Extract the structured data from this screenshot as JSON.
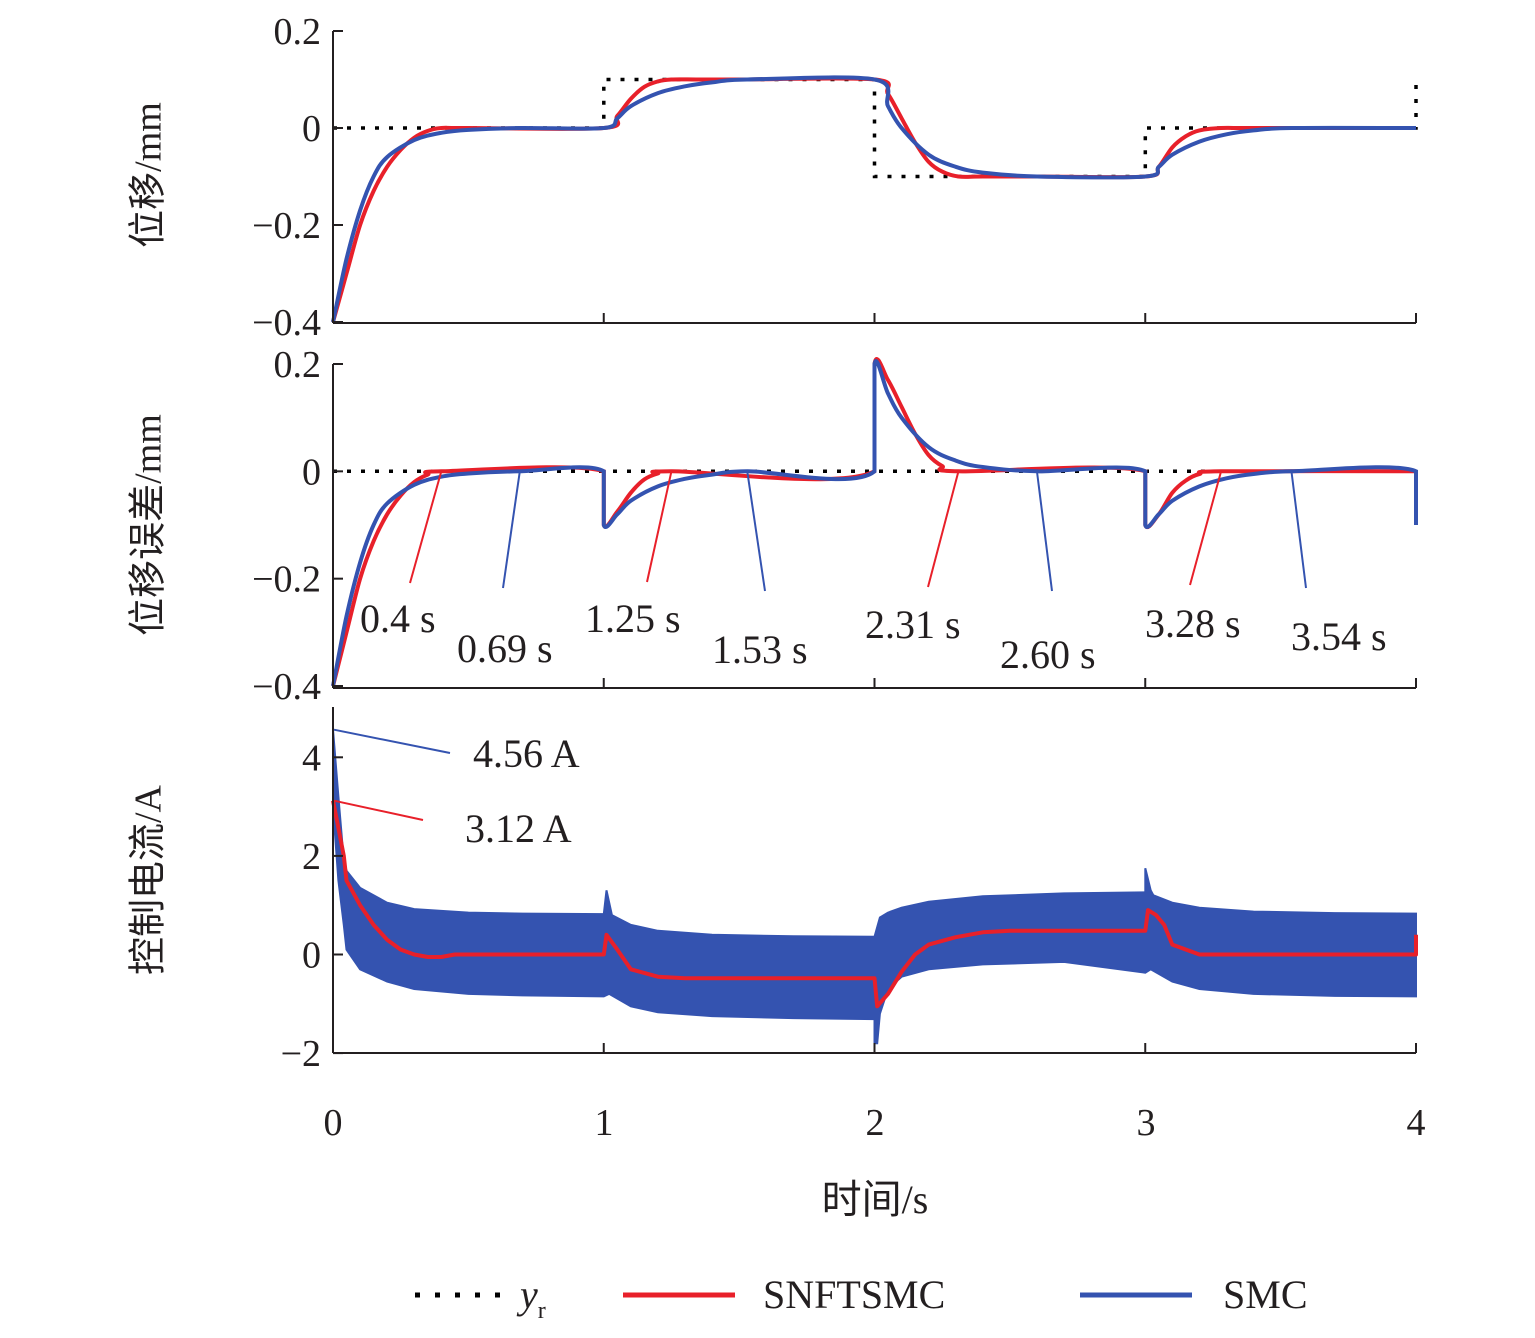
{
  "figure": {
    "xlabel": "时间/s",
    "xticks": [
      "0",
      "1",
      "2",
      "3",
      "4"
    ]
  },
  "legend": {
    "yr_label": "y",
    "yr_sub": "r",
    "snftsmc_label": "SNFTSMC",
    "smc_label": "SMC"
  },
  "colors": {
    "yr": "#000000",
    "snftsmc": "#e8202a",
    "smc": "#3453b0"
  },
  "chart_data": [
    {
      "type": "line",
      "ylabel": "位移/mm",
      "xlim": [
        0,
        4
      ],
      "ylim": [
        -0.4,
        0.2
      ],
      "ytick_labels": [
        "0.2",
        "0",
        "−0.2",
        "−0.4"
      ],
      "series": [
        {
          "name": "y_r",
          "x": [
            0,
            1,
            1,
            2,
            2,
            3,
            3,
            4,
            4
          ],
          "values": [
            0,
            0,
            0.1,
            0.1,
            -0.1,
            -0.1,
            0,
            0,
            0.1
          ]
        },
        {
          "name": "SNFTSMC",
          "x": [
            0,
            0.05,
            0.1,
            0.15,
            0.2,
            0.25,
            0.3,
            0.35,
            0.4,
            0.5,
            1.0,
            1.05,
            1.1,
            1.15,
            1.2,
            1.25,
            1.35,
            1.5,
            2.0,
            2.05,
            2.1,
            2.15,
            2.2,
            2.25,
            2.31,
            2.4,
            2.6,
            3.0,
            3.05,
            3.1,
            3.15,
            3.2,
            3.28,
            3.4,
            4.0
          ],
          "values": [
            -0.4,
            -0.3,
            -0.2,
            -0.13,
            -0.08,
            -0.045,
            -0.02,
            -0.006,
            0,
            0,
            0,
            0.025,
            0.06,
            0.085,
            0.096,
            0.1,
            0.1,
            0.1,
            0.1,
            0.07,
            0.02,
            -0.03,
            -0.07,
            -0.09,
            -0.1,
            -0.1,
            -0.1,
            -0.1,
            -0.08,
            -0.04,
            -0.017,
            -0.005,
            0,
            0,
            0
          ]
        },
        {
          "name": "SMC",
          "x": [
            0,
            0.05,
            0.1,
            0.15,
            0.2,
            0.3,
            0.4,
            0.5,
            0.69,
            1.0,
            1.05,
            1.1,
            1.2,
            1.3,
            1.4,
            1.53,
            2.0,
            2.05,
            2.1,
            2.2,
            2.3,
            2.4,
            2.6,
            3.0,
            3.05,
            3.1,
            3.2,
            3.3,
            3.4,
            3.54,
            4.0
          ],
          "values": [
            -0.4,
            -0.27,
            -0.17,
            -0.1,
            -0.06,
            -0.025,
            -0.01,
            -0.004,
            0,
            0,
            0.02,
            0.045,
            0.072,
            0.086,
            0.094,
            0.1,
            0.1,
            0.045,
            0.0,
            -0.055,
            -0.08,
            -0.092,
            -0.1,
            -0.1,
            -0.08,
            -0.055,
            -0.028,
            -0.013,
            -0.005,
            0,
            0
          ]
        }
      ]
    },
    {
      "type": "line",
      "ylabel": "位移误差/mm",
      "xlim": [
        0,
        4
      ],
      "ylim": [
        -0.4,
        0.2
      ],
      "ytick_labels": [
        "0.2",
        "0",
        "−0.2",
        "−0.4"
      ],
      "series": [
        {
          "name": "y_r",
          "x": [
            0,
            4
          ],
          "values": [
            0,
            0
          ]
        },
        {
          "name": "SNFTSMC",
          "x": [
            0,
            0.05,
            0.1,
            0.15,
            0.2,
            0.25,
            0.3,
            0.35,
            0.4,
            1.0,
            1.0,
            1.05,
            1.1,
            1.15,
            1.2,
            1.25,
            2.0,
            2.0,
            2.05,
            2.1,
            2.15,
            2.2,
            2.25,
            2.31,
            3.0,
            3.0,
            3.05,
            3.1,
            3.15,
            3.2,
            3.28,
            4.0
          ],
          "values": [
            -0.4,
            -0.3,
            -0.2,
            -0.13,
            -0.08,
            -0.045,
            -0.02,
            -0.006,
            0,
            0,
            -0.1,
            -0.075,
            -0.04,
            -0.015,
            -0.004,
            0,
            0,
            0.2,
            0.17,
            0.12,
            0.07,
            0.03,
            0.01,
            0,
            0,
            -0.1,
            -0.08,
            -0.04,
            -0.017,
            -0.005,
            0,
            0
          ]
        },
        {
          "name": "SMC",
          "x": [
            0,
            0.05,
            0.1,
            0.15,
            0.2,
            0.3,
            0.4,
            0.5,
            0.69,
            1.0,
            1.0,
            1.05,
            1.1,
            1.2,
            1.3,
            1.4,
            1.53,
            2.0,
            2.0,
            2.05,
            2.1,
            2.2,
            2.3,
            2.4,
            2.6,
            3.0,
            3.0,
            3.05,
            3.1,
            3.2,
            3.3,
            3.4,
            3.54,
            4.0,
            4.0
          ],
          "values": [
            -0.4,
            -0.27,
            -0.17,
            -0.1,
            -0.06,
            -0.025,
            -0.01,
            -0.004,
            0,
            0,
            -0.1,
            -0.08,
            -0.055,
            -0.028,
            -0.014,
            -0.006,
            0,
            0,
            0.2,
            0.145,
            0.1,
            0.045,
            0.02,
            0.008,
            0,
            0,
            -0.1,
            -0.08,
            -0.055,
            -0.028,
            -0.013,
            -0.005,
            0,
            0,
            -0.1
          ]
        }
      ],
      "annotations": [
        {
          "text": "0.4 s",
          "series": "SNFTSMC",
          "x": 0.4
        },
        {
          "text": "0.69 s",
          "series": "SMC",
          "x": 0.69
        },
        {
          "text": "1.25 s",
          "series": "SNFTSMC",
          "x": 1.25
        },
        {
          "text": "1.53 s",
          "series": "SMC",
          "x": 1.53
        },
        {
          "text": "2.31 s",
          "series": "SNFTSMC",
          "x": 2.31
        },
        {
          "text": "2.60 s",
          "series": "SMC",
          "x": 2.6
        },
        {
          "text": "3.28 s",
          "series": "SNFTSMC",
          "x": 3.28
        },
        {
          "text": "3.54 s",
          "series": "SMC",
          "x": 3.54
        }
      ]
    },
    {
      "type": "line",
      "ylabel": "控制电流/A",
      "xlim": [
        0,
        4
      ],
      "ylim": [
        -2,
        5
      ],
      "ytick_labels": [
        "4",
        "2",
        "0",
        "−2"
      ],
      "series": [
        {
          "name": "SNFTSMC",
          "x": [
            0,
            0.015,
            0.04,
            0.05,
            0.1,
            0.15,
            0.2,
            0.25,
            0.3,
            0.35,
            0.4,
            0.45,
            1.0,
            1.01,
            1.05,
            1.1,
            1.2,
            1.3,
            2.0,
            2.01,
            2.05,
            2.1,
            2.15,
            2.2,
            2.3,
            2.4,
            2.5,
            3.0,
            3.01,
            3.04,
            3.07,
            3.1,
            3.2,
            3.3,
            4.0,
            4.0
          ],
          "values": [
            3.12,
            2.7,
            2.0,
            1.5,
            1.0,
            0.6,
            0.3,
            0.1,
            0.0,
            -0.05,
            -0.05,
            0,
            0,
            0.4,
            0.1,
            -0.3,
            -0.45,
            -0.48,
            -0.48,
            -1.05,
            -0.8,
            -0.35,
            0.0,
            0.2,
            0.35,
            0.45,
            0.48,
            0.48,
            0.9,
            0.8,
            0.6,
            0.2,
            0.0,
            0.0,
            0.0,
            0.4
          ]
        },
        {
          "name": "SMC_upper",
          "x": [
            0,
            0.02,
            0.04,
            0.05,
            0.1,
            0.2,
            0.3,
            0.5,
            0.7,
            1.0,
            1.01,
            1.03,
            1.1,
            1.2,
            1.4,
            1.7,
            2.0,
            2.02,
            2.05,
            2.1,
            2.2,
            2.4,
            2.7,
            3.0,
            3.0,
            3.02,
            3.03,
            3.1,
            3.2,
            3.4,
            3.7,
            4.0
          ],
          "values": [
            4.56,
            3.2,
            1.9,
            1.7,
            1.35,
            1.05,
            0.92,
            0.85,
            0.83,
            0.82,
            1.3,
            0.8,
            0.6,
            0.48,
            0.4,
            0.37,
            0.36,
            0.75,
            0.85,
            0.95,
            1.07,
            1.18,
            1.24,
            1.26,
            1.75,
            1.3,
            1.2,
            1.05,
            0.95,
            0.87,
            0.84,
            0.83
          ]
        },
        {
          "name": "SMC_lower",
          "x": [
            0,
            0.02,
            0.04,
            0.05,
            0.1,
            0.2,
            0.3,
            0.5,
            0.7,
            1.0,
            1.0,
            1.02,
            1.1,
            1.2,
            1.4,
            1.7,
            2.0,
            2.0,
            2.01,
            2.02,
            2.05,
            2.1,
            2.2,
            2.4,
            2.7,
            3.0,
            3.0,
            3.02,
            3.1,
            3.2,
            3.4,
            3.7,
            4.0
          ],
          "values": [
            3.0,
            1.5,
            0.6,
            0.1,
            -0.3,
            -0.55,
            -0.7,
            -0.8,
            -0.83,
            -0.85,
            -0.85,
            -0.8,
            -1.05,
            -1.17,
            -1.25,
            -1.29,
            -1.31,
            -1.8,
            -1.8,
            -1.2,
            -0.7,
            -0.45,
            -0.3,
            -0.2,
            -0.15,
            -0.37,
            -0.37,
            -0.3,
            -0.55,
            -0.7,
            -0.8,
            -0.84,
            -0.85
          ]
        }
      ],
      "annotations": [
        {
          "text": "4.56 A",
          "series": "SMC",
          "x": 0,
          "y": 4.56
        },
        {
          "text": "3.12 A",
          "series": "SNFTSMC",
          "x": 0,
          "y": 3.12
        }
      ]
    }
  ]
}
